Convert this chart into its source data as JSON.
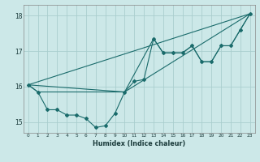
{
  "xlabel": "Humidex (Indice chaleur)",
  "bg_color": "#cce8e8",
  "grid_color": "#aacece",
  "line_color": "#1a6b6b",
  "xlim": [
    -0.5,
    23.5
  ],
  "ylim": [
    14.7,
    18.3
  ],
  "xticks": [
    0,
    1,
    2,
    3,
    4,
    5,
    6,
    7,
    8,
    9,
    10,
    11,
    12,
    13,
    14,
    15,
    16,
    17,
    18,
    19,
    20,
    21,
    22,
    23
  ],
  "yticks": [
    15,
    16,
    17,
    18
  ],
  "series1": {
    "x": [
      0,
      1,
      2,
      3,
      4,
      5,
      6,
      7,
      8,
      9,
      10,
      11,
      12,
      13,
      14,
      15,
      16,
      17,
      18,
      19,
      20,
      21,
      22,
      23
    ],
    "y": [
      16.05,
      15.85,
      15.35,
      15.35,
      15.2,
      15.2,
      15.1,
      14.85,
      14.9,
      15.25,
      15.85,
      16.15,
      16.2,
      17.35,
      16.95,
      16.95,
      16.95,
      17.15,
      16.7,
      16.7,
      17.15,
      17.15,
      17.6,
      18.05
    ]
  },
  "series2": {
    "x": [
      0,
      1,
      10,
      13,
      14,
      15,
      16,
      17,
      18,
      19,
      20,
      21,
      22,
      23
    ],
    "y": [
      16.05,
      15.85,
      15.85,
      17.35,
      16.95,
      16.95,
      16.95,
      17.15,
      16.7,
      16.7,
      17.15,
      17.15,
      17.6,
      18.05
    ]
  },
  "series3": {
    "x": [
      0,
      23
    ],
    "y": [
      16.05,
      18.05
    ]
  },
  "series4": {
    "x": [
      0,
      10,
      23
    ],
    "y": [
      16.05,
      15.85,
      18.05
    ]
  }
}
